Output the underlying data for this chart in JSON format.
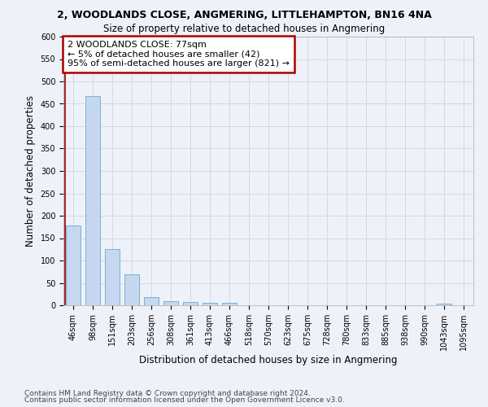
{
  "title": "2, WOODLANDS CLOSE, ANGMERING, LITTLEHAMPTON, BN16 4NA",
  "subtitle": "Size of property relative to detached houses in Angmering",
  "xlabel": "Distribution of detached houses by size in Angmering",
  "ylabel": "Number of detached properties",
  "categories": [
    "46sqm",
    "98sqm",
    "151sqm",
    "203sqm",
    "256sqm",
    "308sqm",
    "361sqm",
    "413sqm",
    "466sqm",
    "518sqm",
    "570sqm",
    "623sqm",
    "675sqm",
    "728sqm",
    "780sqm",
    "833sqm",
    "885sqm",
    "938sqm",
    "990sqm",
    "1043sqm",
    "1095sqm"
  ],
  "values": [
    178,
    468,
    125,
    70,
    18,
    10,
    7,
    5,
    5,
    0,
    0,
    0,
    0,
    0,
    0,
    0,
    0,
    0,
    0,
    3,
    0
  ],
  "bar_color": "#c5d8ef",
  "bar_edge_color": "#7bafd4",
  "annotation_box_text": "2 WOODLANDS CLOSE: 77sqm\n← 5% of detached houses are smaller (42)\n95% of semi-detached houses are larger (821) →",
  "annotation_box_color": "#ffffff",
  "annotation_box_edge_color": "#aa0000",
  "ylim": [
    0,
    600
  ],
  "yticks": [
    0,
    50,
    100,
    150,
    200,
    250,
    300,
    350,
    400,
    450,
    500,
    550,
    600
  ],
  "background_color": "#eef2f8",
  "grid_color": "#d0d8e8",
  "footer_line1": "Contains HM Land Registry data © Crown copyright and database right 2024.",
  "footer_line2": "Contains public sector information licensed under the Open Government Licence v3.0.",
  "title_fontsize": 9,
  "subtitle_fontsize": 8.5,
  "label_fontsize": 8.5,
  "tick_fontsize": 7,
  "annotation_fontsize": 8,
  "footer_fontsize": 6.5
}
